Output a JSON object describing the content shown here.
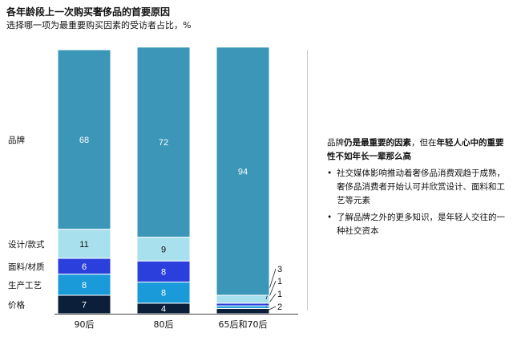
{
  "title": "各年龄段上一次购买奢侈品的首要原因",
  "subtitle": "选择哪一项为最重要购买因素的受访者占比，%",
  "chart_data": {
    "type": "bar",
    "stacked": true,
    "categories": [
      "90后",
      "80后",
      "65后和70后"
    ],
    "ylim": [
      0,
      100
    ],
    "series": [
      {
        "name": "价格",
        "values": [
          7,
          4,
          2
        ],
        "color": "#0c1f3a"
      },
      {
        "name": "生产工艺",
        "values": [
          8,
          8,
          1
        ],
        "color": "#1a9ad8"
      },
      {
        "name": "面料/材质",
        "values": [
          6,
          8,
          1
        ],
        "color": "#2a3fdc"
      },
      {
        "name": "设计/款式",
        "values": [
          11,
          9,
          3
        ],
        "color": "#a8e0ee"
      },
      {
        "name": "品牌",
        "values": [
          68,
          72,
          94
        ],
        "color": "#3b96b8"
      }
    ]
  },
  "panel": {
    "headline_parts": [
      {
        "text": "品牌",
        "bold": false
      },
      {
        "text": "仍是最重要的因素",
        "bold": true
      },
      {
        "text": "，但在",
        "bold": false
      },
      {
        "text": "年轻人心中的重要性不如年长一辈那么高",
        "bold": true
      }
    ],
    "bullet_symbol": "•",
    "bullets": [
      "社交媒体影响推动着奢侈品消费观趋于成熟，奢侈品消费者开始认可并欣赏设计、面料和工艺等元素",
      "了解品牌之外的更多知识，是年轻人交往的一种社交资本"
    ]
  }
}
